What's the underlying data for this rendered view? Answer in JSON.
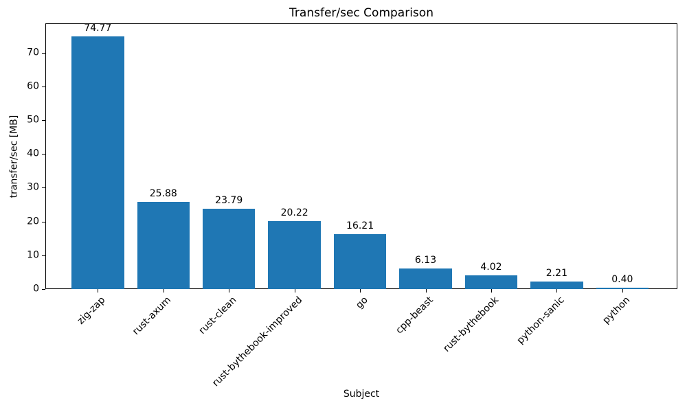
{
  "chart_data": {
    "type": "bar",
    "title": "Transfer/sec Comparison",
    "xlabel": "Subject",
    "ylabel": "transfer/sec [MB]",
    "categories": [
      "zig-zap",
      "rust-axum",
      "rust-clean",
      "rust-bythebook-improved",
      "go",
      "cpp-beast",
      "rust-bythebook",
      "python-sanic",
      "python"
    ],
    "values": [
      74.77,
      25.88,
      23.79,
      20.22,
      16.21,
      6.13,
      4.02,
      2.21,
      0.4
    ],
    "bar_value_labels": [
      "74.77",
      "25.88",
      "23.79",
      "20.22",
      "16.21",
      "6.13",
      "4.02",
      "2.21",
      "0.40"
    ],
    "yticks": [
      0,
      10,
      20,
      30,
      40,
      50,
      60,
      70
    ],
    "ytick_labels": [
      "0",
      "10",
      "20",
      "30",
      "40",
      "50",
      "60",
      "70"
    ],
    "ylim": [
      0,
      78.7
    ],
    "xlim": [
      -0.8,
      8.84
    ],
    "bar_width": 0.8,
    "bar_color": "#1f77b4",
    "text_color": "#000000",
    "background_color": "#ffffff",
    "grid": false,
    "x_tick_rotation_deg": 45,
    "legend_position": "none"
  }
}
